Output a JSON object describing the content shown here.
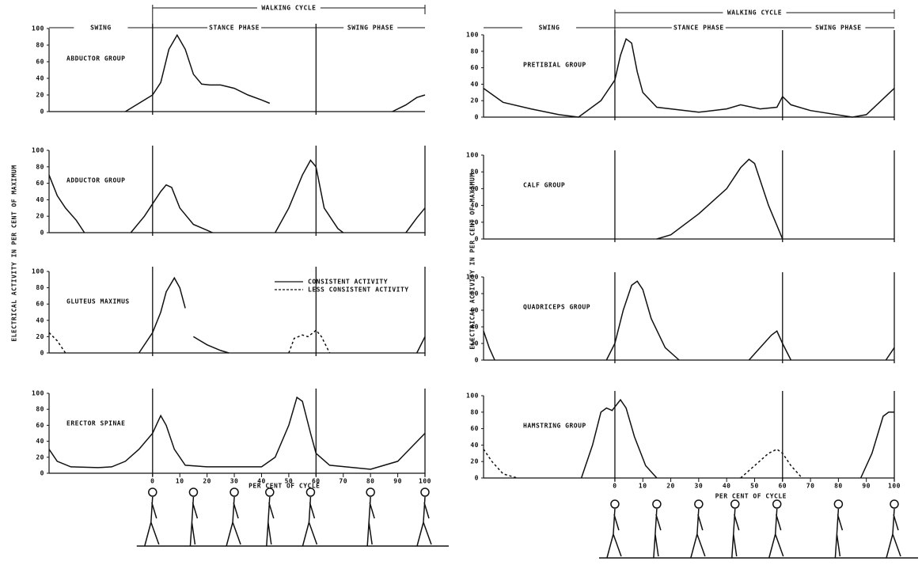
{
  "panels": [
    {
      "walking_cycle": "WALKING CYCLE",
      "phases": [
        "SWING",
        "STANCE PHASE",
        "SWING PHASE"
      ],
      "y_label": "ELECTRICAL ACTIVITY IN PER CENT OF MAXIMUM",
      "x_label": "PER CENT OF CYCLE"
    },
    {
      "walking_cycle": "WALKING CYCLE",
      "phases": [
        "SWING",
        "STANCE PHASE",
        "SWING PHASE"
      ],
      "y_label": "ELECTRICAL ACTIVITY IN PER CENT OF MAXIMUM",
      "x_label": "PER CENT OF CYCLE"
    }
  ],
  "chart_data": [
    {
      "type": "line",
      "title": "ABDUCTOR GROUP",
      "xlim": [
        -38,
        100
      ],
      "ylim": [
        0,
        100
      ],
      "yticks": [
        0,
        20,
        40,
        60,
        80,
        100
      ],
      "vlines": [
        0,
        60
      ],
      "series": [
        {
          "color": "#111111",
          "style": "solid",
          "x": [
            -10,
            -5,
            0,
            3,
            6,
            9,
            12,
            15,
            18,
            21,
            25,
            30,
            35,
            40,
            43,
            null,
            88,
            93,
            97,
            100
          ],
          "values": [
            0,
            10,
            20,
            35,
            75,
            92,
            75,
            45,
            33,
            32,
            32,
            28,
            20,
            14,
            10,
            null,
            0,
            8,
            17,
            20
          ]
        }
      ]
    },
    {
      "type": "line",
      "title": "ADDUCTOR GROUP",
      "xlim": [
        -38,
        100
      ],
      "ylim": [
        0,
        100
      ],
      "yticks": [
        0,
        20,
        40,
        60,
        80,
        100
      ],
      "vlines": [
        0,
        60,
        100
      ],
      "series": [
        {
          "color": "#111111",
          "style": "solid",
          "x": [
            -38,
            -35,
            -32,
            -28,
            -25,
            null,
            -8,
            -3,
            0,
            3,
            5,
            7,
            10,
            15,
            20,
            22,
            null,
            45,
            50,
            55,
            58,
            60,
            63,
            68,
            70,
            null,
            93,
            97,
            100
          ],
          "values": [
            70,
            45,
            30,
            15,
            0,
            null,
            0,
            20,
            35,
            50,
            58,
            55,
            30,
            10,
            3,
            0,
            null,
            0,
            30,
            70,
            88,
            80,
            30,
            5,
            0,
            null,
            0,
            18,
            30
          ]
        }
      ]
    },
    {
      "type": "line",
      "title": "GLUTEUS MAXIMUS",
      "xlim": [
        -38,
        100
      ],
      "ylim": [
        0,
        100
      ],
      "yticks": [
        0,
        20,
        40,
        60,
        80,
        100
      ],
      "vlines": [
        0,
        60,
        100
      ],
      "series": [
        {
          "name": "CONSISTENT ACTIVITY",
          "color": "#111111",
          "style": "solid",
          "x": [
            -5,
            0,
            3,
            5,
            8,
            10,
            12,
            null,
            15,
            20,
            25,
            28,
            null,
            97,
            100
          ],
          "values": [
            0,
            25,
            50,
            75,
            92,
            80,
            55,
            null,
            20,
            10,
            3,
            0,
            null,
            0,
            20
          ]
        },
        {
          "name": "LESS CONSISTENT ACTIVITY",
          "color": "#111111",
          "style": "dashed",
          "x": [
            -38,
            -35,
            -32,
            null,
            50,
            52,
            55,
            57,
            59,
            60,
            62,
            65
          ],
          "values": [
            25,
            15,
            0,
            null,
            0,
            18,
            22,
            20,
            25,
            28,
            20,
            0
          ]
        }
      ]
    },
    {
      "type": "line",
      "title": "ERECTOR SPINAE",
      "xlim": [
        -38,
        100
      ],
      "ylim": [
        0,
        100
      ],
      "yticks": [
        0,
        20,
        40,
        60,
        80,
        100
      ],
      "vlines": [
        0,
        60,
        100
      ],
      "xticks": [
        0,
        10,
        20,
        30,
        40,
        50,
        60,
        70,
        80,
        90,
        100
      ],
      "series": [
        {
          "color": "#111111",
          "style": "solid",
          "x": [
            -38,
            -35,
            -30,
            -20,
            -15,
            -10,
            -5,
            0,
            2,
            3,
            5,
            8,
            12,
            20,
            40,
            45,
            50,
            53,
            55,
            58,
            60,
            65,
            80,
            90,
            100
          ],
          "values": [
            30,
            15,
            8,
            7,
            8,
            15,
            30,
            50,
            65,
            72,
            60,
            30,
            10,
            8,
            8,
            20,
            60,
            95,
            90,
            50,
            25,
            10,
            5,
            15,
            50
          ]
        }
      ]
    },
    {
      "type": "line",
      "title": "PRETIBIAL GROUP",
      "xlim": [
        -47,
        100
      ],
      "ylim": [
        0,
        100
      ],
      "yticks": [
        0,
        20,
        40,
        60,
        80,
        100
      ],
      "vlines": [
        0,
        60,
        100
      ],
      "series": [
        {
          "color": "#111111",
          "style": "solid",
          "x": [
            -47,
            -40,
            -30,
            -20,
            -13,
            -5,
            0,
            2,
            4,
            6,
            8,
            10,
            15,
            30,
            40,
            45,
            52,
            58,
            60,
            63,
            70,
            85,
            90,
            100
          ],
          "values": [
            35,
            18,
            10,
            3,
            0,
            20,
            45,
            75,
            95,
            90,
            55,
            30,
            12,
            6,
            10,
            15,
            10,
            12,
            25,
            15,
            8,
            0,
            3,
            35
          ]
        }
      ]
    },
    {
      "type": "line",
      "title": "CALF GROUP",
      "xlim": [
        -47,
        100
      ],
      "ylim": [
        0,
        100
      ],
      "yticks": [
        0,
        20,
        40,
        60,
        80,
        100
      ],
      "vlines": [
        0,
        60,
        100
      ],
      "series": [
        {
          "color": "#111111",
          "style": "solid",
          "x": [
            15,
            20,
            30,
            40,
            45,
            48,
            50,
            55,
            60
          ],
          "values": [
            0,
            5,
            30,
            60,
            85,
            95,
            90,
            40,
            0
          ]
        }
      ]
    },
    {
      "type": "line",
      "title": "QUADRICEPS GROUP",
      "xlim": [
        -47,
        100
      ],
      "ylim": [
        0,
        100
      ],
      "yticks": [
        0,
        20,
        40,
        60,
        80,
        100
      ],
      "vlines": [
        0,
        60,
        100
      ],
      "series": [
        {
          "color": "#111111",
          "style": "solid",
          "x": [
            -47,
            -45,
            -43,
            null,
            -3,
            0,
            3,
            6,
            8,
            10,
            13,
            18,
            23,
            null,
            48,
            52,
            56,
            58,
            60,
            63,
            null,
            97,
            100
          ],
          "values": [
            35,
            15,
            0,
            null,
            0,
            20,
            60,
            90,
            95,
            85,
            50,
            15,
            0,
            null,
            0,
            15,
            30,
            35,
            20,
            0,
            null,
            0,
            15
          ]
        }
      ]
    },
    {
      "type": "line",
      "title": "HAMSTRING GROUP",
      "xlim": [
        -47,
        100
      ],
      "ylim": [
        0,
        100
      ],
      "yticks": [
        0,
        20,
        40,
        60,
        80,
        100
      ],
      "vlines": [
        0,
        60,
        100
      ],
      "xticks": [
        0,
        10,
        20,
        30,
        40,
        50,
        60,
        70,
        80,
        90,
        100
      ],
      "series": [
        {
          "color": "#111111",
          "style": "solid",
          "x": [
            -12,
            -8,
            -5,
            -3,
            -1,
            2,
            4,
            7,
            11,
            15,
            null,
            88,
            92,
            96,
            98,
            100
          ],
          "values": [
            0,
            40,
            80,
            85,
            82,
            95,
            85,
            50,
            15,
            0,
            null,
            0,
            30,
            75,
            80,
            80
          ]
        },
        {
          "color": "#111111",
          "style": "dashed",
          "x": [
            -47,
            -44,
            -40,
            -35,
            null,
            45,
            50,
            55,
            58,
            60,
            63,
            67
          ],
          "values": [
            35,
            20,
            5,
            0,
            null,
            0,
            15,
            30,
            35,
            30,
            15,
            0
          ]
        }
      ]
    }
  ]
}
